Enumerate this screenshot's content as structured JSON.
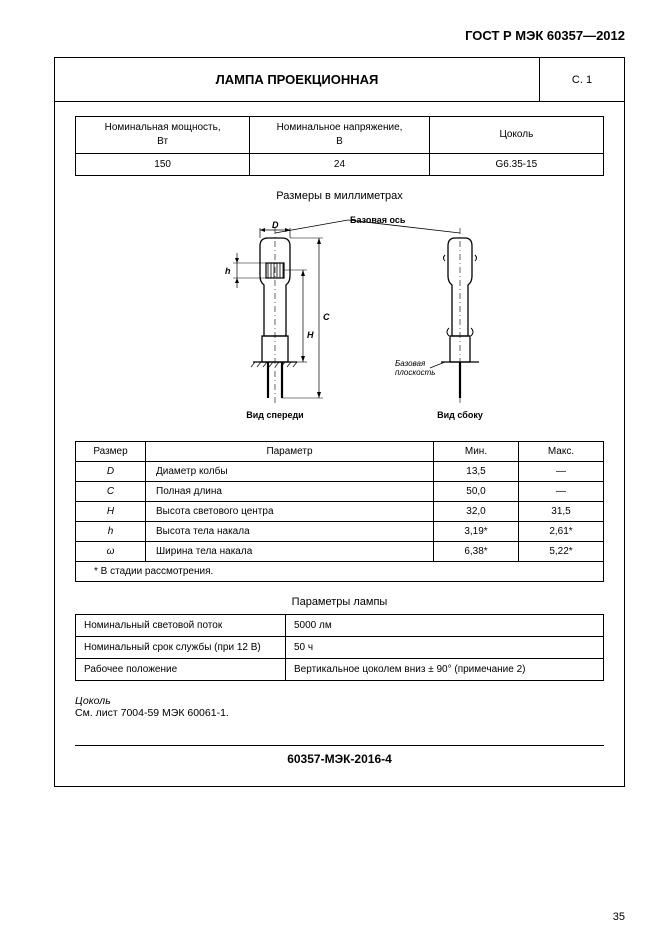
{
  "doc_id": "ГОСТ Р МЭК 60357—2012",
  "title": "ЛАМПА ПРОЕКЦИОННАЯ",
  "page_ref": "С. 1",
  "rating": {
    "headers": [
      "Номинальная мощность,\nВт",
      "Номинальное напряжение,\nВ",
      "Цоколь"
    ],
    "values": [
      "150",
      "24",
      "G6.35-15"
    ]
  },
  "dimensions_caption": "Размеры в миллиметрах",
  "diagram": {
    "axis_label": "Базовая ось",
    "plane_label1": "Базовая",
    "plane_label2": "плоскость",
    "front_view": "Вид спереди",
    "side_view": "Вид сбоку",
    "D": "D",
    "C": "C",
    "H": "H",
    "h": "h"
  },
  "dim_table": {
    "headers": [
      "Размер",
      "Параметр",
      "Мин.",
      "Макс."
    ],
    "rows": [
      {
        "sym": "D",
        "param": "Диаметр колбы",
        "min": "13,5",
        "max": "—"
      },
      {
        "sym": "C",
        "param": "Полная длина",
        "min": "50,0",
        "max": "—"
      },
      {
        "sym": "H",
        "param": "Высота светового центра",
        "min": "32,0",
        "max": "31,5"
      },
      {
        "sym": "h",
        "param": "Высота тела накала",
        "min": "3,19*",
        "max": "2,61*"
      },
      {
        "sym": "ω",
        "param": "Ширина тела накала",
        "min": "6,38*",
        "max": "5,22*"
      }
    ],
    "note": "* В стадии рассмотрения."
  },
  "params_caption": "Параметры лампы",
  "params": {
    "rows": [
      {
        "label": "Номинальный световой поток",
        "value": "5000 лм"
      },
      {
        "label": "Номинальный срок службы (при 12 В)",
        "value": "50 ч"
      },
      {
        "label": "Рабочее положение",
        "value": "Вертикальное цоколем вниз ± 90° (примечание 2)"
      }
    ]
  },
  "cap_heading": "Цоколь",
  "cap_text": "См. лист 7004-59 МЭК 60061-1.",
  "sheet_code": "60357-МЭК-2016-4",
  "page_num": "35"
}
